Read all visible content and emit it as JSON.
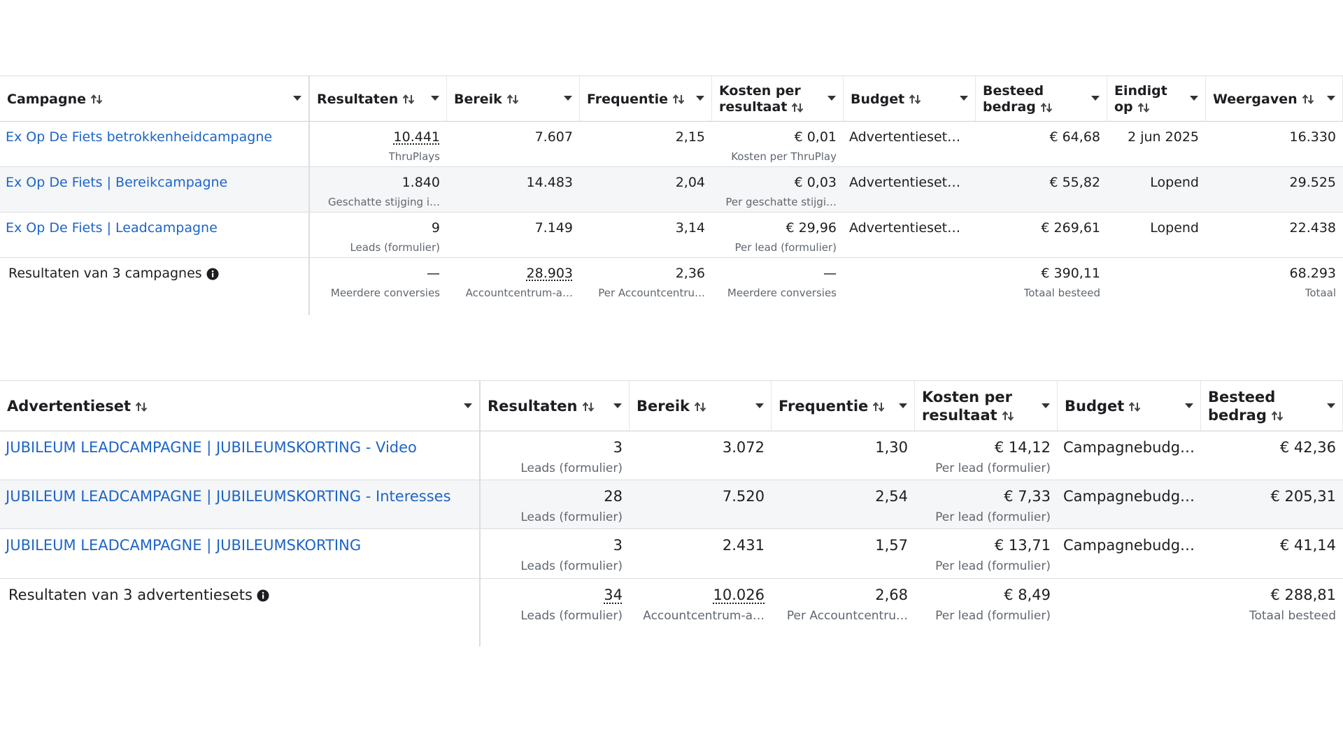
{
  "tables": [
    {
      "columns": [
        "Campagne",
        "Resultaten",
        "Bereik",
        "Frequentie",
        "Kosten per resultaat",
        "Budget",
        "Besteed bedrag",
        "Eindigt op",
        "Weergaven"
      ],
      "rows": [
        [
          {
            "text": "Ex Op De Fiets betrokkenheidcampagne",
            "link": true
          },
          {
            "text": "10.441",
            "sub": "ThruPlays",
            "underline": true
          },
          {
            "text": "7.607"
          },
          {
            "text": "2,15"
          },
          {
            "text": "€ 0,01",
            "sub": "Kosten per ThruPlay"
          },
          {
            "text": "Advertentieset…"
          },
          {
            "text": "€ 64,68"
          },
          {
            "text": "2 jun 2025"
          },
          {
            "text": "16.330"
          }
        ],
        [
          {
            "text": "Ex Op De Fiets | Bereikcampagne",
            "link": true
          },
          {
            "text": "1.840",
            "sub": "Geschatte stijging i…"
          },
          {
            "text": "14.483"
          },
          {
            "text": "2,04"
          },
          {
            "text": "€ 0,03",
            "sub": "Per geschatte stijgi…"
          },
          {
            "text": "Advertentieset…"
          },
          {
            "text": "€ 55,82"
          },
          {
            "text": "Lopend"
          },
          {
            "text": "29.525"
          }
        ],
        [
          {
            "text": "Ex Op De Fiets | Leadcampagne",
            "link": true
          },
          {
            "text": "9",
            "sub": "Leads (formulier)"
          },
          {
            "text": "7.149"
          },
          {
            "text": "3,14"
          },
          {
            "text": "€ 29,96",
            "sub": "Per lead (formulier)"
          },
          {
            "text": "Advertentieset…"
          },
          {
            "text": "€ 269,61"
          },
          {
            "text": "Lopend"
          },
          {
            "text": "22.438"
          }
        ]
      ],
      "summary": [
        {
          "text": "Resultaten van 3 campagnes"
        },
        {
          "text": "—",
          "sub": "Meerdere conversies"
        },
        {
          "text": "28.903",
          "sub": "Accountcentrum-a…",
          "underline": true
        },
        {
          "text": "2,36",
          "sub": "Per Accountcentru…"
        },
        {
          "text": "—",
          "sub": "Meerdere conversies"
        },
        null,
        {
          "text": "€ 390,11",
          "sub": "Totaal besteed"
        },
        null,
        {
          "text": "68.293",
          "sub": "Totaal"
        }
      ]
    },
    {
      "columns": [
        "Advertentieset",
        "Resultaten",
        "Bereik",
        "Frequentie",
        "Kosten per resultaat",
        "Budget",
        "Besteed bedrag"
      ],
      "rows": [
        [
          {
            "text": "JUBILEUM LEADCAMPAGNE | JUBILEUMSKORTING - Video",
            "link": true
          },
          {
            "text": "3",
            "sub": "Leads (formulier)"
          },
          {
            "text": "3.072"
          },
          {
            "text": "1,30"
          },
          {
            "text": "€ 14,12",
            "sub": "Per lead (formulier)"
          },
          {
            "text": "Campagnebudg…"
          },
          {
            "text": "€ 42,36"
          }
        ],
        [
          {
            "text": "JUBILEUM LEADCAMPAGNE | JUBILEUMSKORTING - Interesses",
            "link": true
          },
          {
            "text": "28",
            "sub": "Leads (formulier)"
          },
          {
            "text": "7.520"
          },
          {
            "text": "2,54"
          },
          {
            "text": "€ 7,33",
            "sub": "Per lead (formulier)"
          },
          {
            "text": "Campagnebudg…"
          },
          {
            "text": "€ 205,31"
          }
        ],
        [
          {
            "text": "JUBILEUM LEADCAMPAGNE | JUBILEUMSKORTING",
            "link": true
          },
          {
            "text": "3",
            "sub": "Leads (formulier)"
          },
          {
            "text": "2.431"
          },
          {
            "text": "1,57"
          },
          {
            "text": "€ 13,71",
            "sub": "Per lead (formulier)"
          },
          {
            "text": "Campagnebudg…"
          },
          {
            "text": "€ 41,14"
          }
        ]
      ],
      "summary": [
        {
          "text": "Resultaten van 3 advertentiesets"
        },
        {
          "text": "34",
          "sub": "Leads (formulier)",
          "underline": true
        },
        {
          "text": "10.026",
          "sub": "Accountcentrum-a…",
          "underline": true
        },
        {
          "text": "2,68",
          "sub": "Per Accountcentru…"
        },
        {
          "text": "€ 8,49",
          "sub": "Per lead (formulier)"
        },
        null,
        {
          "text": "€ 288,81",
          "sub": "Totaal besteed"
        }
      ]
    }
  ]
}
